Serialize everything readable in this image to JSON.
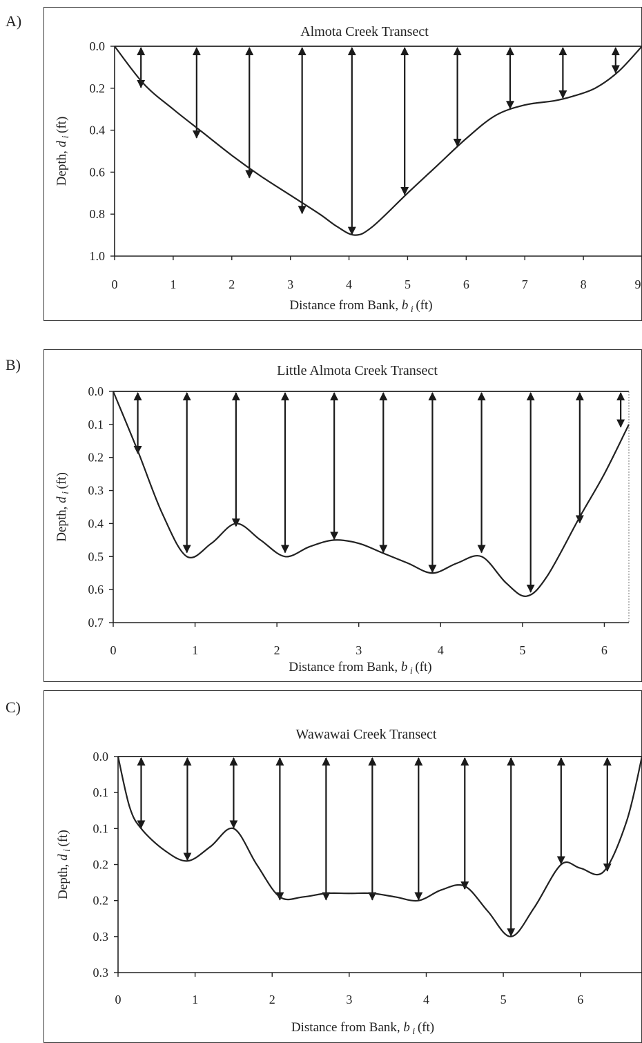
{
  "panels": [
    {
      "letter": "A)"
    },
    {
      "letter": "B)"
    },
    {
      "letter": "C)"
    }
  ],
  "chart_data": [
    {
      "type": "line",
      "title": "Almota Creek Transect",
      "xlabel": "Distance from Bank, b i (ft)",
      "ylabel": "Depth, d i (ft)",
      "xlim": [
        0,
        9
      ],
      "ylim": [
        0,
        1.0
      ],
      "y_inverted": true,
      "xticks": [
        "0",
        "1",
        "2",
        "3",
        "4",
        "5",
        "6",
        "7",
        "8",
        "9"
      ],
      "yticks": [
        "0.0",
        "0.2",
        "0.4",
        "0.6",
        "0.8",
        "1.0"
      ],
      "profile": {
        "x": [
          0,
          0.5,
          1,
          1.5,
          2,
          2.5,
          3,
          3.5,
          3.8,
          4.1,
          4.4,
          5,
          5.5,
          6,
          6.5,
          7,
          7.5,
          7.8,
          8.2,
          8.6,
          9
        ],
        "y": [
          0,
          0.18,
          0.3,
          0.41,
          0.52,
          0.62,
          0.71,
          0.8,
          0.86,
          0.9,
          0.86,
          0.7,
          0.57,
          0.44,
          0.33,
          0.28,
          0.26,
          0.24,
          0.2,
          0.12,
          0
        ]
      },
      "verticals": {
        "x": [
          0.45,
          1.4,
          2.3,
          3.2,
          4.05,
          4.95,
          5.85,
          6.75,
          7.65,
          8.55
        ],
        "depth": [
          0.2,
          0.44,
          0.63,
          0.8,
          0.9,
          0.71,
          0.48,
          0.3,
          0.25,
          0.13
        ]
      }
    },
    {
      "type": "line",
      "title": "Little Almota Creek Transect",
      "xlabel": "Distance from Bank, b i (ft)",
      "ylabel": "Depth, d i (ft)",
      "xlim": [
        0,
        6.3
      ],
      "ylim": [
        0,
        0.7
      ],
      "y_inverted": true,
      "xticks": [
        "0",
        "1",
        "2",
        "3",
        "4",
        "5",
        "6"
      ],
      "yticks": [
        "0.0",
        "0.1",
        "0.2",
        "0.3",
        "0.4",
        "0.5",
        "0.6",
        "0.7"
      ],
      "profile": {
        "x": [
          0,
          0.3,
          0.6,
          0.9,
          1.2,
          1.5,
          1.8,
          2.1,
          2.4,
          2.7,
          3.0,
          3.3,
          3.6,
          3.9,
          4.2,
          4.5,
          4.8,
          5.05,
          5.3,
          5.7,
          6.0,
          6.3
        ],
        "y": [
          0,
          0.18,
          0.37,
          0.5,
          0.46,
          0.4,
          0.45,
          0.5,
          0.47,
          0.45,
          0.46,
          0.49,
          0.52,
          0.55,
          0.52,
          0.5,
          0.58,
          0.62,
          0.56,
          0.38,
          0.25,
          0.1
        ]
      },
      "verticals": {
        "x": [
          0.3,
          0.9,
          1.5,
          2.1,
          2.7,
          3.3,
          3.9,
          4.5,
          5.1,
          5.7,
          6.2
        ],
        "depth": [
          0.19,
          0.49,
          0.41,
          0.49,
          0.45,
          0.49,
          0.55,
          0.49,
          0.61,
          0.4,
          0.11
        ]
      }
    },
    {
      "type": "line",
      "title": "Wawawai Creek Transect",
      "xlabel": "Distance from Bank, b i (ft)",
      "ylabel": "Depth, d i (ft)",
      "xlim": [
        0,
        6.8
      ],
      "ylim": [
        0,
        0.3
      ],
      "y_inverted": true,
      "xticks": [
        "0",
        "1",
        "2",
        "3",
        "4",
        "5",
        "6"
      ],
      "yticks": [
        "0.0",
        "0.1",
        "0.1",
        "0.2",
        "0.2",
        "0.3",
        "0.3"
      ],
      "profile": {
        "x": [
          0,
          0.15,
          0.3,
          0.6,
          0.9,
          1.2,
          1.5,
          1.8,
          2.1,
          2.4,
          2.7,
          3.0,
          3.3,
          3.6,
          3.9,
          4.2,
          4.5,
          4.8,
          5.1,
          5.4,
          5.75,
          6.0,
          6.3,
          6.6,
          6.8
        ],
        "y": [
          0,
          0.07,
          0.1,
          0.13,
          0.145,
          0.125,
          0.1,
          0.15,
          0.195,
          0.195,
          0.19,
          0.19,
          0.19,
          0.195,
          0.2,
          0.185,
          0.18,
          0.215,
          0.25,
          0.21,
          0.15,
          0.155,
          0.16,
          0.09,
          0
        ]
      },
      "verticals": {
        "x": [
          0.3,
          0.9,
          1.5,
          2.1,
          2.7,
          3.3,
          3.9,
          4.5,
          5.1,
          5.75,
          6.35
        ],
        "depth": [
          0.1,
          0.145,
          0.1,
          0.2,
          0.2,
          0.2,
          0.2,
          0.185,
          0.25,
          0.15,
          0.16
        ]
      }
    }
  ]
}
